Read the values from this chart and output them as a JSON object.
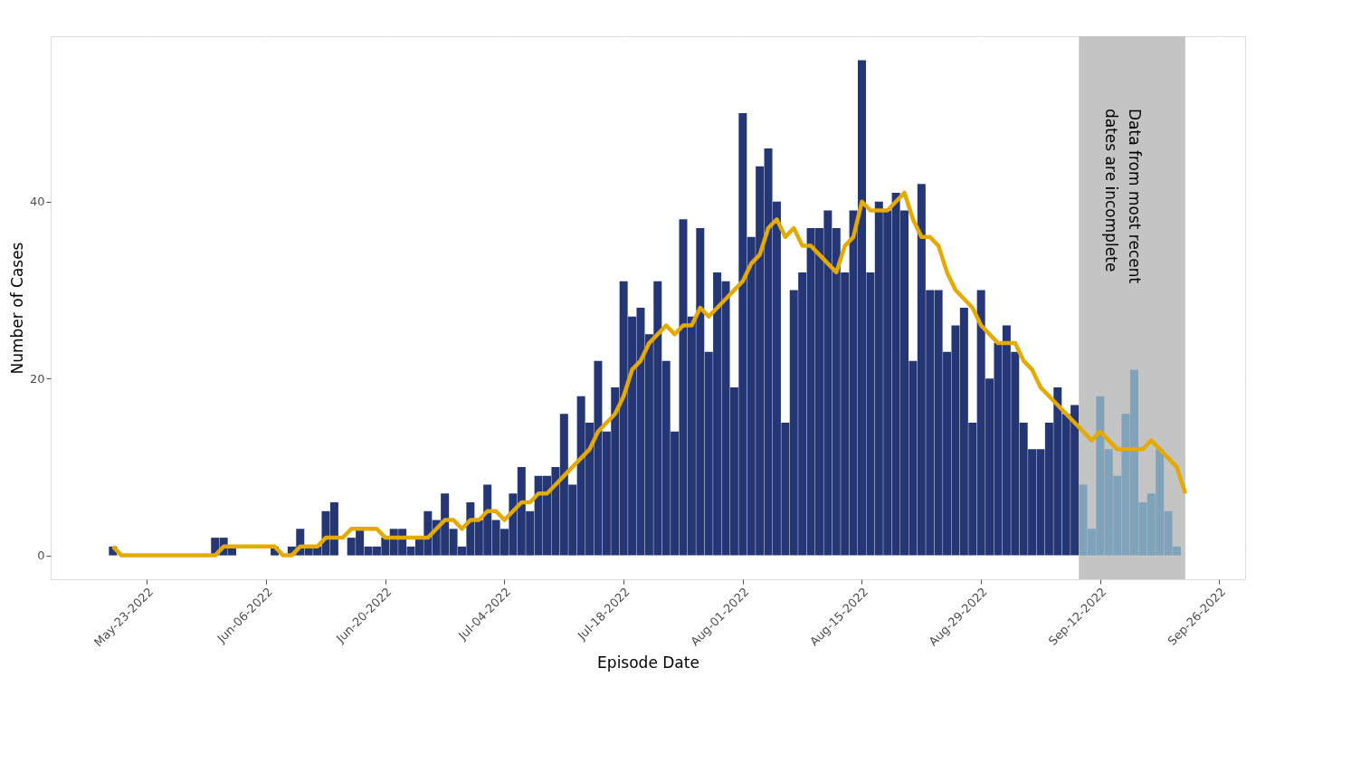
{
  "chart_data": {
    "type": "bar",
    "xlabel": "Episode Date",
    "ylabel": "Number of Cases",
    "x": [
      "2022-05-19",
      "2022-05-20",
      "2022-05-21",
      "2022-05-22",
      "2022-05-23",
      "2022-05-24",
      "2022-05-25",
      "2022-05-26",
      "2022-05-27",
      "2022-05-28",
      "2022-05-29",
      "2022-05-30",
      "2022-05-31",
      "2022-06-01",
      "2022-06-02",
      "2022-06-03",
      "2022-06-04",
      "2022-06-05",
      "2022-06-06",
      "2022-06-07",
      "2022-06-08",
      "2022-06-09",
      "2022-06-10",
      "2022-06-11",
      "2022-06-12",
      "2022-06-13",
      "2022-06-14",
      "2022-06-15",
      "2022-06-16",
      "2022-06-17",
      "2022-06-18",
      "2022-06-19",
      "2022-06-20",
      "2022-06-21",
      "2022-06-22",
      "2022-06-23",
      "2022-06-24",
      "2022-06-25",
      "2022-06-26",
      "2022-06-27",
      "2022-06-28",
      "2022-06-29",
      "2022-06-30",
      "2022-07-01",
      "2022-07-02",
      "2022-07-03",
      "2022-07-04",
      "2022-07-05",
      "2022-07-06",
      "2022-07-07",
      "2022-07-08",
      "2022-07-09",
      "2022-07-10",
      "2022-07-11",
      "2022-07-12",
      "2022-07-13",
      "2022-07-14",
      "2022-07-15",
      "2022-07-16",
      "2022-07-17",
      "2022-07-18",
      "2022-07-19",
      "2022-07-20",
      "2022-07-21",
      "2022-07-22",
      "2022-07-23",
      "2022-07-24",
      "2022-07-25",
      "2022-07-26",
      "2022-07-27",
      "2022-07-28",
      "2022-07-29",
      "2022-07-30",
      "2022-07-31",
      "2022-08-01",
      "2022-08-02",
      "2022-08-03",
      "2022-08-04",
      "2022-08-05",
      "2022-08-06",
      "2022-08-07",
      "2022-08-08",
      "2022-08-09",
      "2022-08-10",
      "2022-08-11",
      "2022-08-12",
      "2022-08-13",
      "2022-08-14",
      "2022-08-15",
      "2022-08-16",
      "2022-08-17",
      "2022-08-18",
      "2022-08-19",
      "2022-08-20",
      "2022-08-21",
      "2022-08-22",
      "2022-08-23",
      "2022-08-24",
      "2022-08-25",
      "2022-08-26",
      "2022-08-27",
      "2022-08-28",
      "2022-08-29",
      "2022-08-30",
      "2022-08-31",
      "2022-09-01",
      "2022-09-02",
      "2022-09-03",
      "2022-09-04",
      "2022-09-05",
      "2022-09-06",
      "2022-09-07",
      "2022-09-08",
      "2022-09-09",
      "2022-09-10",
      "2022-09-11",
      "2022-09-12",
      "2022-09-13",
      "2022-09-14",
      "2022-09-15",
      "2022-09-16",
      "2022-09-17",
      "2022-09-18",
      "2022-09-19",
      "2022-09-20",
      "2022-09-21"
    ],
    "series": [
      {
        "values": [
          1,
          0,
          0,
          0,
          0,
          0,
          0,
          0,
          0,
          0,
          0,
          0,
          2,
          2,
          1,
          0,
          0,
          0,
          0,
          1,
          0,
          1,
          3,
          1,
          1,
          5,
          6,
          0,
          2,
          3,
          1,
          1,
          2,
          3,
          3,
          1,
          2,
          5,
          4,
          7,
          3,
          1,
          6,
          4,
          8,
          4,
          3,
          7,
          10,
          5,
          9,
          9,
          10,
          16,
          8,
          18,
          15,
          22,
          14,
          19,
          31,
          27,
          28,
          25,
          31,
          22,
          14,
          38,
          27,
          37,
          23,
          32,
          31,
          19,
          50,
          36,
          44,
          46,
          40,
          15,
          30,
          32,
          37,
          37,
          39,
          37,
          32,
          39,
          56,
          32,
          40,
          39,
          41,
          39,
          22,
          42,
          30,
          30,
          23,
          26,
          28,
          15,
          30,
          20,
          24,
          26,
          23,
          15,
          12,
          12,
          15,
          19,
          16,
          17,
          8,
          3,
          18,
          12,
          9,
          16,
          21,
          6,
          7,
          12,
          5,
          1
        ],
        "colors": [
          "#243673",
          "#243673",
          "#243673",
          "#243673",
          "#243673",
          "#243673",
          "#243673",
          "#243673",
          "#243673",
          "#243673",
          "#243673",
          "#243673",
          "#243673",
          "#243673",
          "#243673",
          "#243673",
          "#243673",
          "#243673",
          "#243673",
          "#243673",
          "#243673",
          "#243673",
          "#243673",
          "#243673",
          "#243673",
          "#243673",
          "#243673",
          "#243673",
          "#243673",
          "#243673",
          "#243673",
          "#243673",
          "#243673",
          "#243673",
          "#243673",
          "#243673",
          "#243673",
          "#243673",
          "#243673",
          "#243673",
          "#243673",
          "#243673",
          "#243673",
          "#243673",
          "#243673",
          "#243673",
          "#243673",
          "#243673",
          "#243673",
          "#243673",
          "#243673",
          "#243673",
          "#243673",
          "#243673",
          "#243673",
          "#243673",
          "#243673",
          "#243673",
          "#243673",
          "#243673",
          "#243673",
          "#243673",
          "#243673",
          "#243673",
          "#243673",
          "#243673",
          "#243673",
          "#243673",
          "#243673",
          "#243673",
          "#243673",
          "#243673",
          "#243673",
          "#243673",
          "#243673",
          "#243673",
          "#243673",
          "#243673",
          "#243673",
          "#243673",
          "#243673",
          "#243673",
          "#243673",
          "#243673",
          "#243673",
          "#243673",
          "#243673",
          "#243673",
          "#243673",
          "#243673",
          "#243673",
          "#243673",
          "#243673",
          "#243673",
          "#243673",
          "#243673",
          "#243673",
          "#243673",
          "#243673",
          "#243673",
          "#243673",
          "#243673",
          "#243673",
          "#243673",
          "#243673",
          "#243673",
          "#243673",
          "#243673",
          "#243673",
          "#243673",
          "#243673",
          "#243673",
          "#243673",
          "#243673",
          "#7fa3bb",
          "#7fa3bb",
          "#7fa3bb",
          "#7fa3bb",
          "#7fa3bb",
          "#7fa3bb",
          "#7fa3bb",
          "#7fa3bb",
          "#7fa3bb",
          "#7fa3bb",
          "#7fa3bb",
          "#7fa3bb"
        ]
      },
      {
        "type": "line",
        "color": "#e5aa00",
        "x": [
          "2022-05-19",
          "2022-05-20",
          "2022-05-21",
          "2022-05-22",
          "2022-05-23",
          "2022-05-24",
          "2022-05-25",
          "2022-05-26",
          "2022-05-27",
          "2022-05-28",
          "2022-05-29",
          "2022-05-30",
          "2022-05-31",
          "2022-06-01",
          "2022-06-02",
          "2022-06-03",
          "2022-06-04",
          "2022-06-05",
          "2022-06-06",
          "2022-06-07",
          "2022-06-08",
          "2022-06-09",
          "2022-06-10",
          "2022-06-11",
          "2022-06-12",
          "2022-06-13",
          "2022-06-14",
          "2022-06-15",
          "2022-06-16",
          "2022-06-17",
          "2022-06-18",
          "2022-06-19",
          "2022-06-20",
          "2022-06-21",
          "2022-06-22",
          "2022-06-23",
          "2022-06-24",
          "2022-06-25",
          "2022-06-26",
          "2022-06-27",
          "2022-06-28",
          "2022-06-29",
          "2022-06-30",
          "2022-07-01",
          "2022-07-02",
          "2022-07-03",
          "2022-07-04",
          "2022-07-05",
          "2022-07-06",
          "2022-07-07",
          "2022-07-08",
          "2022-07-09",
          "2022-07-10",
          "2022-07-11",
          "2022-07-12",
          "2022-07-13",
          "2022-07-14",
          "2022-07-15",
          "2022-07-16",
          "2022-07-17",
          "2022-07-18",
          "2022-07-19",
          "2022-07-20",
          "2022-07-21",
          "2022-07-22",
          "2022-07-23",
          "2022-07-24",
          "2022-07-25",
          "2022-07-26",
          "2022-07-27",
          "2022-07-28",
          "2022-07-29",
          "2022-07-30",
          "2022-07-31",
          "2022-08-01",
          "2022-08-02",
          "2022-08-03",
          "2022-08-04",
          "2022-08-05",
          "2022-08-06",
          "2022-08-07",
          "2022-08-08",
          "2022-08-09",
          "2022-08-10",
          "2022-08-11",
          "2022-08-12",
          "2022-08-13",
          "2022-08-14",
          "2022-08-15",
          "2022-08-16",
          "2022-08-17",
          "2022-08-18",
          "2022-08-19",
          "2022-08-20",
          "2022-08-21",
          "2022-08-22",
          "2022-08-23",
          "2022-08-24",
          "2022-08-25",
          "2022-08-26",
          "2022-08-27",
          "2022-08-28",
          "2022-08-29",
          "2022-08-30",
          "2022-08-31",
          "2022-09-01",
          "2022-09-02",
          "2022-09-03",
          "2022-09-04",
          "2022-09-05",
          "2022-09-06",
          "2022-09-07",
          "2022-09-08",
          "2022-09-09",
          "2022-09-10",
          "2022-09-11",
          "2022-09-12",
          "2022-09-13",
          "2022-09-14",
          "2022-09-15",
          "2022-09-16",
          "2022-09-17",
          "2022-09-18",
          "2022-09-19",
          "2022-09-20",
          "2022-09-21",
          "2022-09-22"
        ],
        "values": [
          1,
          0,
          0,
          0,
          0,
          0,
          0,
          0,
          0,
          0,
          0,
          0,
          0,
          1,
          1,
          1,
          1,
          1,
          1,
          1,
          0,
          0,
          1,
          1,
          1,
          2,
          2,
          2,
          3,
          3,
          3,
          3,
          2,
          2,
          2,
          2,
          2,
          2,
          3,
          4,
          4,
          3,
          4,
          4,
          5,
          5,
          4,
          5,
          6,
          6,
          7,
          7,
          8,
          9,
          10,
          11,
          12,
          14,
          15,
          16,
          18,
          21,
          22,
          24,
          25,
          26,
          25,
          26,
          26,
          28,
          27,
          28,
          29,
          30,
          31,
          33,
          34,
          37,
          38,
          36,
          37,
          35,
          35,
          34,
          33,
          32,
          35,
          36,
          40,
          39,
          39,
          39,
          40,
          41,
          38,
          36,
          36,
          35,
          32,
          30,
          29,
          28,
          26,
          25,
          24,
          24,
          24,
          22,
          21,
          19,
          18,
          17,
          16,
          15,
          14,
          13,
          14,
          13,
          12,
          12,
          12,
          12,
          13,
          12,
          11,
          10,
          7
        ]
      }
    ],
    "xlim": [
      "2022-05-12T05:00",
      "2022-09-28T12:00"
    ],
    "xticks": [
      {
        "value": "2022-05-23",
        "label": "May-23-2022"
      },
      {
        "value": "2022-06-06",
        "label": "Jun-06-2022"
      },
      {
        "value": "2022-06-20",
        "label": "Jun-20-2022"
      },
      {
        "value": "2022-07-04",
        "label": "Jul-04-2022"
      },
      {
        "value": "2022-07-18",
        "label": "Jul-18-2022"
      },
      {
        "value": "2022-08-01",
        "label": "Aug-01-2022"
      },
      {
        "value": "2022-08-15",
        "label": "Aug-15-2022"
      },
      {
        "value": "2022-08-29",
        "label": "Aug-29-2022"
      },
      {
        "value": "2022-09-12",
        "label": "Sep-12-2022"
      },
      {
        "value": "2022-09-26",
        "label": "Sep-26-2022"
      }
    ],
    "ylim": [
      -2.7,
      58.7
    ],
    "yticks": [
      0,
      20,
      40
    ],
    "grid": true,
    "bands": [
      {
        "axis": "x",
        "from": "2022-09-09T12:00",
        "to": "2022-09-22",
        "label": "Data from most recent\ndates are incomplete",
        "color": "#c4c4c4"
      }
    ]
  }
}
